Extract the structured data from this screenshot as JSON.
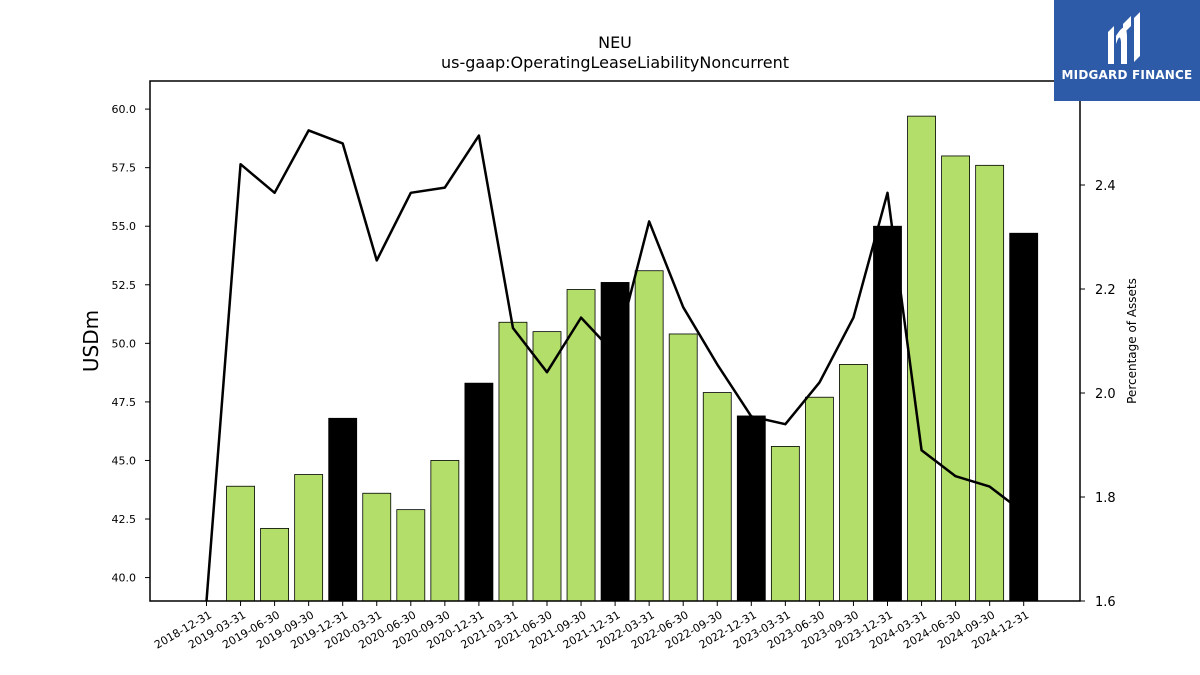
{
  "chart_data": {
    "type": "bar",
    "title": "NEU",
    "subtitle": "us-gaap:OperatingLeaseLiabilityNoncurrent",
    "ylabel": "USDm",
    "y2label": "Percentage of Assets",
    "ylim": [
      39.0,
      61.2
    ],
    "y2lim": [
      1.6,
      2.6
    ],
    "yticks": [
      "40.0",
      "42.5",
      "45.0",
      "47.5",
      "50.0",
      "52.5",
      "55.0",
      "57.5",
      "60.0"
    ],
    "y2ticks": [
      "1.6",
      "1.8",
      "2.0",
      "2.2",
      "2.4"
    ],
    "categories": [
      "2018-12-31",
      "2019-03-31",
      "2019-06-30",
      "2019-09-30",
      "2019-12-31",
      "2020-03-31",
      "2020-06-30",
      "2020-09-30",
      "2020-12-31",
      "2021-03-31",
      "2021-06-30",
      "2021-09-30",
      "2021-12-31",
      "2022-03-31",
      "2022-06-30",
      "2022-09-30",
      "2022-12-31",
      "2023-03-31",
      "2023-06-30",
      "2023-09-30",
      "2023-12-31",
      "2024-03-31",
      "2024-06-30",
      "2024-09-30",
      "2024-12-31"
    ],
    "series": [
      {
        "type": "bar",
        "values": [
          null,
          43.9,
          42.1,
          44.4,
          46.8,
          43.6,
          42.9,
          45.0,
          48.3,
          50.9,
          50.5,
          52.3,
          52.6,
          53.1,
          50.4,
          47.9,
          46.9,
          45.6,
          47.7,
          49.1,
          55.0,
          59.7,
          58.0,
          57.6,
          54.7
        ],
        "annual_bar_color": "#000000",
        "quarter_bar_color": "#b3de69"
      },
      {
        "type": "line",
        "axis": "right",
        "color": "#000000",
        "values": [
          1.6,
          2.44,
          2.385,
          2.505,
          2.48,
          2.255,
          2.385,
          2.395,
          2.495,
          2.125,
          2.04,
          2.145,
          2.075,
          2.33,
          2.165,
          2.055,
          1.955,
          1.94,
          2.02,
          2.145,
          2.385,
          1.89,
          1.84,
          1.82,
          1.77
        ]
      }
    ],
    "grid": false
  },
  "logo": {
    "text": "MIDGARD FINANCE"
  }
}
